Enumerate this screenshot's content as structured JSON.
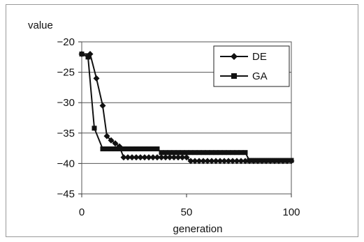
{
  "chart_data": {
    "type": "line",
    "title": "",
    "xlabel": "generation",
    "ylabel": "value",
    "xlim": [
      0,
      100
    ],
    "ylim": [
      -45,
      -20
    ],
    "x_ticks": [
      "0",
      "50",
      "100"
    ],
    "y_ticks": [
      "-20",
      "-25",
      "-30",
      "-35",
      "-40",
      "-45"
    ],
    "grid": "horizontal",
    "legend_position": "top-right",
    "series": [
      {
        "name": "DE",
        "marker": "diamond",
        "color": "#111111",
        "x": [
          0,
          4,
          7,
          10,
          12,
          14,
          16,
          18,
          20,
          22,
          24,
          26,
          28,
          30,
          32,
          34,
          36,
          38,
          40,
          42,
          44,
          46,
          48,
          50,
          52,
          54,
          56,
          58,
          60,
          62,
          64,
          66,
          68,
          70,
          72,
          74,
          76,
          78,
          80,
          82,
          84,
          86,
          88,
          90,
          92,
          94,
          96,
          98,
          100
        ],
        "values": [
          -22.0,
          -22.0,
          -26.0,
          -30.5,
          -35.5,
          -36.2,
          -36.7,
          -37.2,
          -39.0,
          -39.0,
          -39.0,
          -39.0,
          -39.0,
          -39.0,
          -39.0,
          -39.0,
          -39.0,
          -39.0,
          -39.0,
          -39.0,
          -39.0,
          -39.0,
          -39.0,
          -39.0,
          -39.6,
          -39.6,
          -39.6,
          -39.6,
          -39.6,
          -39.6,
          -39.6,
          -39.6,
          -39.6,
          -39.6,
          -39.6,
          -39.6,
          -39.6,
          -39.6,
          -39.6,
          -39.6,
          -39.6,
          -39.6,
          -39.6,
          -39.6,
          -39.6,
          -39.6,
          -39.6,
          -39.6,
          -39.6
        ]
      },
      {
        "name": "GA",
        "marker": "square",
        "color": "#111111",
        "x": [
          0,
          3,
          6,
          10,
          12,
          14,
          16,
          18,
          20,
          22,
          24,
          26,
          28,
          30,
          32,
          34,
          36,
          38,
          40,
          42,
          44,
          46,
          48,
          50,
          52,
          54,
          56,
          58,
          60,
          62,
          64,
          66,
          68,
          70,
          72,
          74,
          76,
          78,
          80,
          82,
          84,
          86,
          88,
          90,
          92,
          94,
          96,
          98,
          100
        ],
        "values": [
          -22.0,
          -22.5,
          -34.2,
          -37.6,
          -37.6,
          -37.6,
          -37.6,
          -37.6,
          -37.6,
          -37.6,
          -37.6,
          -37.6,
          -37.6,
          -37.6,
          -37.6,
          -37.6,
          -37.6,
          -38.2,
          -38.2,
          -38.2,
          -38.2,
          -38.2,
          -38.2,
          -38.2,
          -38.2,
          -38.2,
          -38.2,
          -38.2,
          -38.2,
          -38.2,
          -38.2,
          -38.2,
          -38.2,
          -38.2,
          -38.2,
          -38.2,
          -38.2,
          -38.2,
          -39.5,
          -39.5,
          -39.5,
          -39.5,
          -39.5,
          -39.5,
          -39.5,
          -39.5,
          -39.5,
          -39.5,
          -39.5
        ]
      }
    ]
  }
}
